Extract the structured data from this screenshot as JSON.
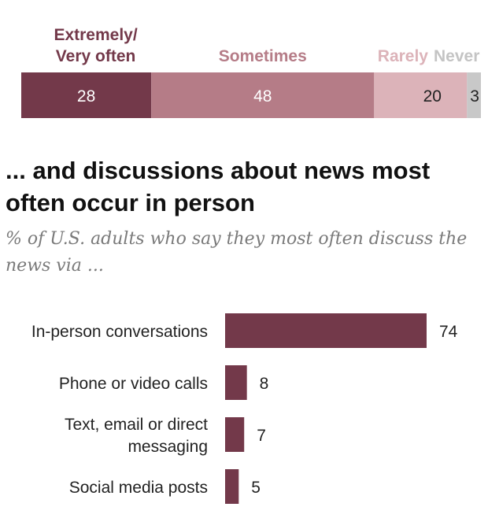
{
  "chart_data": [
    {
      "type": "bar",
      "orientation": "horizontal-stacked",
      "series": [
        {
          "name": "Extremely/ Very often",
          "label_lines": [
            "Extremely/",
            "Very often"
          ],
          "value": 28,
          "color": "#73394a"
        },
        {
          "name": "Sometimes",
          "label_lines": [
            "Sometimes"
          ],
          "value": 48,
          "color": "#b57c87"
        },
        {
          "name": "Rarely",
          "label_lines": [
            "Rarely"
          ],
          "value": 20,
          "color": "#dcb3b9"
        },
        {
          "name": "Never",
          "label_lines": [
            "Never"
          ],
          "value": 3,
          "color": "#c8c8c8"
        }
      ]
    },
    {
      "type": "bar",
      "orientation": "horizontal",
      "title": "... and discussions about news most often occur in person",
      "subtitle": "% of U.S. adults who say they most often discuss the news via ...",
      "xlim": [
        0,
        74
      ],
      "bar_color": "#73394a",
      "categories": [
        {
          "label_lines": [
            "In-person conversations"
          ],
          "value": 74
        },
        {
          "label_lines": [
            "Phone or video calls"
          ],
          "value": 8
        },
        {
          "label_lines": [
            "Text, email or direct",
            "messaging"
          ],
          "value": 7
        },
        {
          "label_lines": [
            "Social media posts"
          ],
          "value": 5
        }
      ]
    }
  ]
}
